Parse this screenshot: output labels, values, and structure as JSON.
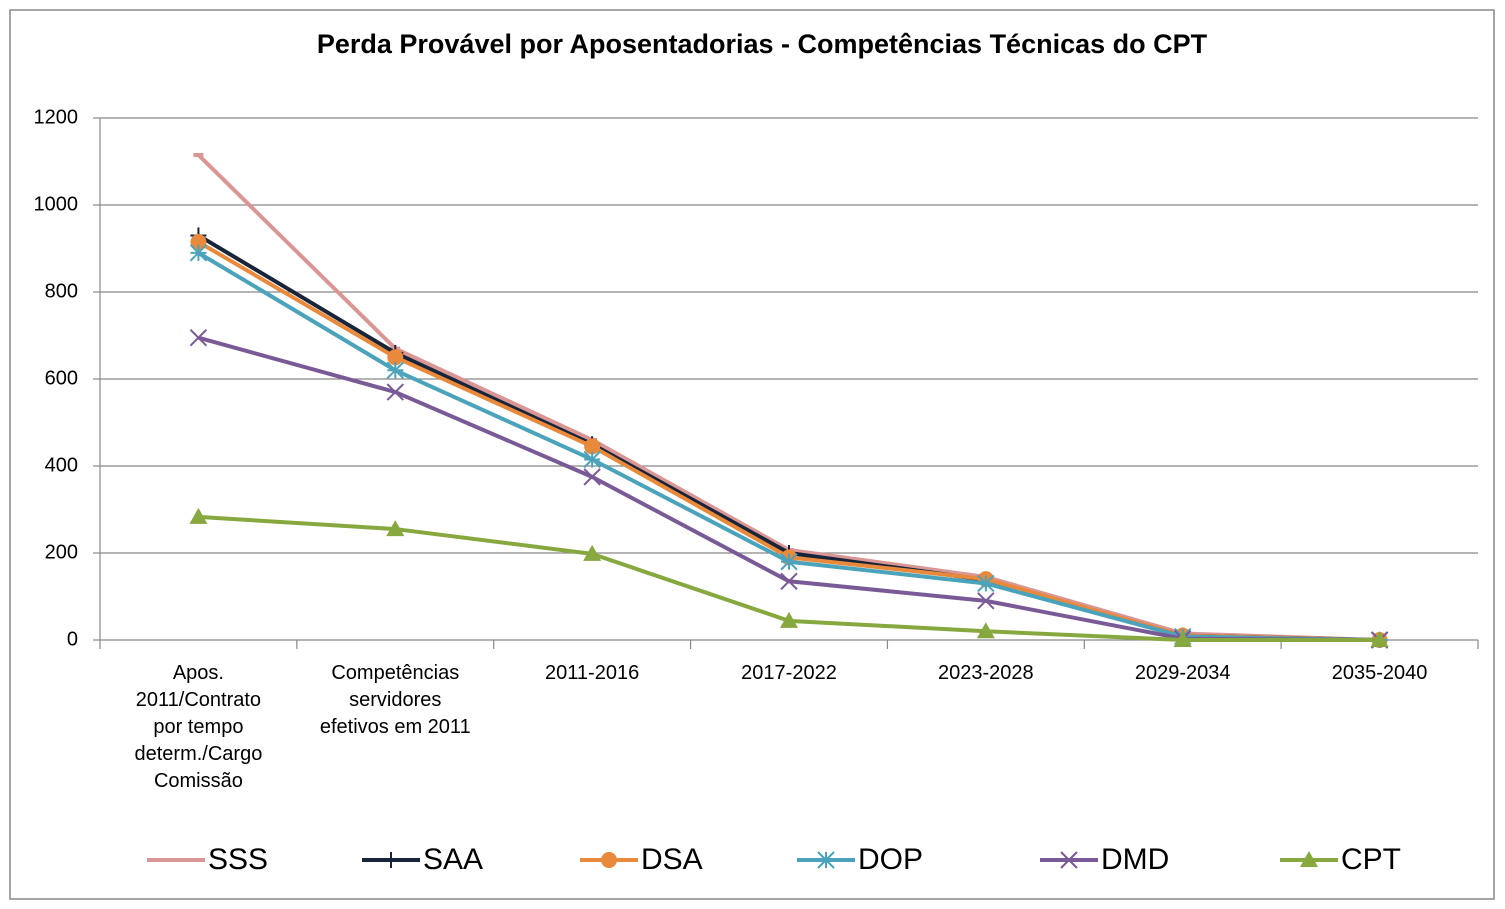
{
  "chart_data": {
    "type": "line",
    "title": "Perda Provável por Aposentadorias - Competências Técnicas do CPT",
    "categories": [
      "Apos.\n2011/Contrato\npor tempo\ndeterm./Cargo\nComissão",
      "Competências\nservidores\nefetivos em 2011",
      "2011-2016",
      "2017-2022",
      "2023-2028",
      "2029-2034",
      "2035-2040"
    ],
    "series": [
      {
        "name": "SSS",
        "color": "#d99694",
        "marker": "dash",
        "values": [
          1115,
          670,
          460,
          207,
          145,
          15,
          0
        ]
      },
      {
        "name": "SAA",
        "color": "#17243a",
        "marker": "plus",
        "values": [
          930,
          660,
          450,
          200,
          138,
          10,
          0
        ]
      },
      {
        "name": "DSA",
        "color": "#e9893b",
        "marker": "circle",
        "values": [
          915,
          650,
          445,
          190,
          140,
          10,
          0
        ]
      },
      {
        "name": "DOP",
        "color": "#4aa3bb",
        "marker": "star",
        "values": [
          890,
          620,
          415,
          180,
          130,
          8,
          0
        ]
      },
      {
        "name": "DMD",
        "color": "#7a5a96",
        "marker": "x",
        "values": [
          695,
          570,
          375,
          135,
          90,
          3,
          0
        ]
      },
      {
        "name": "CPT",
        "color": "#86a83e",
        "marker": "triangle",
        "values": [
          283,
          255,
          198,
          44,
          20,
          0,
          0
        ]
      }
    ],
    "ylim": [
      0,
      1200
    ],
    "yticks": [
      0,
      200,
      400,
      600,
      800,
      1000,
      1200
    ],
    "grid": true,
    "legend": "bottom"
  }
}
